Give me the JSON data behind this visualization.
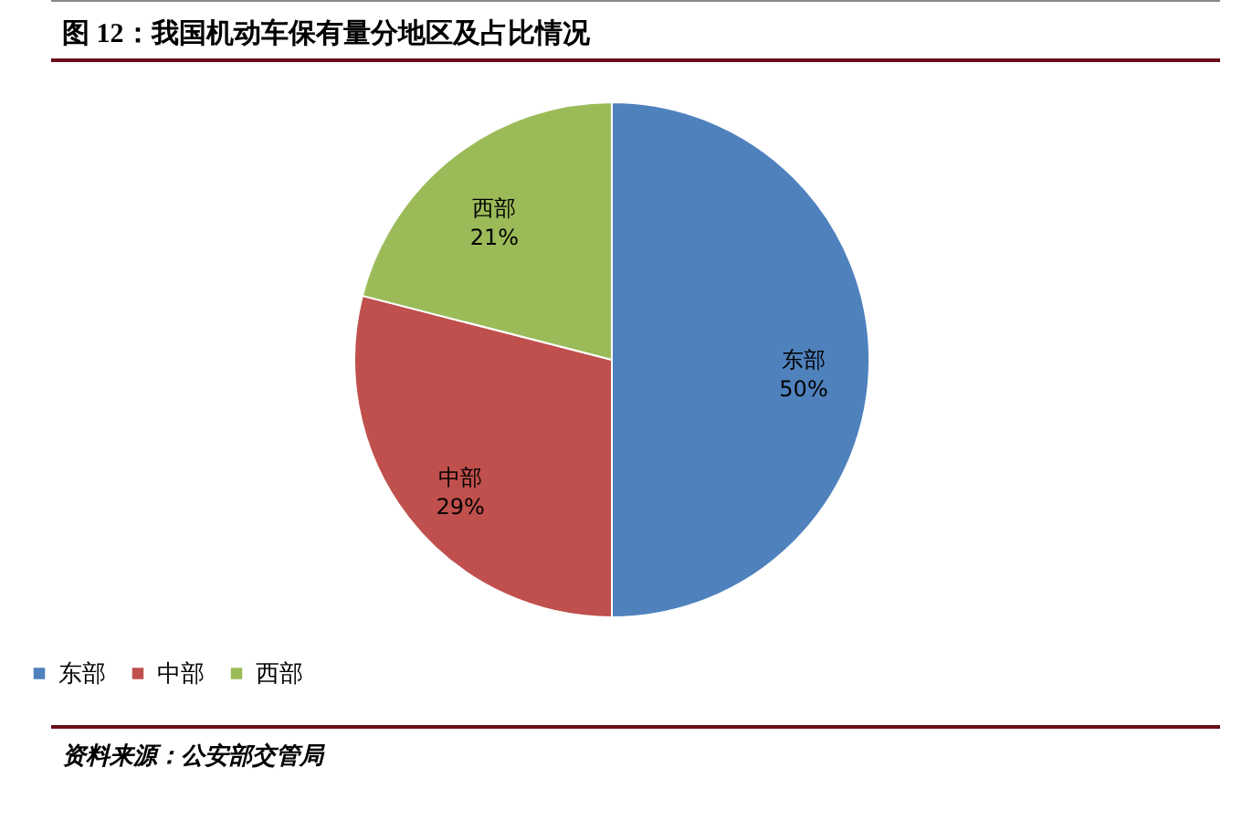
{
  "chart_data": {
    "type": "pie",
    "title": "图 12：我国机动车保有量分地区及占比情况",
    "categories": [
      "东部",
      "中部",
      "西部"
    ],
    "values": [
      50,
      29,
      21
    ],
    "value_labels": [
      "50%",
      "29%",
      "21%"
    ],
    "colors": [
      "#4f81bd",
      "#c0504d",
      "#9bbb59"
    ],
    "legend": "bottom",
    "annotations": [
      "资料来源：公安部交管局"
    ]
  }
}
